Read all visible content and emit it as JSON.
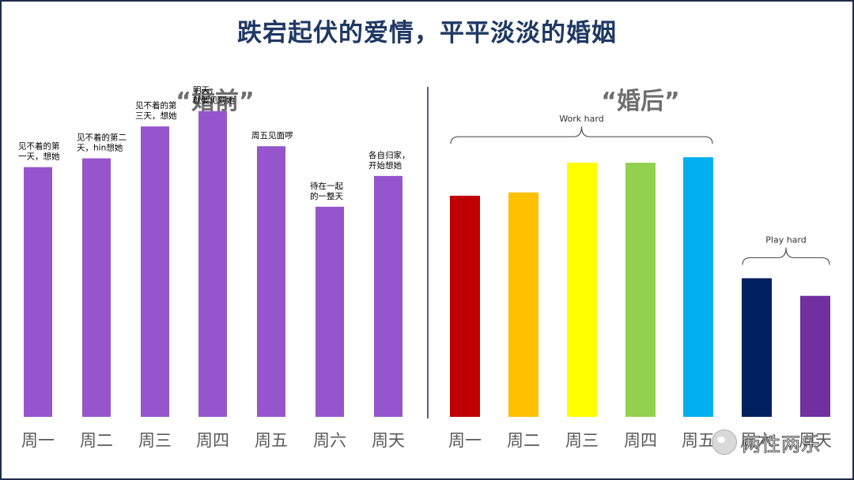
{
  "title": "跌宕起伏的爱情，平平淡淡的婚姻",
  "watermark": "两性两乐",
  "colors": {
    "frame": "#1f2d4d",
    "title": "#1f3864",
    "before_bar": "#9655cc",
    "divider": "#1f2d4d"
  },
  "chart_data": [
    {
      "type": "bar",
      "title": "“婚前”",
      "categories": [
        "周一",
        "周二",
        "周三",
        "周四",
        "周五",
        "周六",
        "周天"
      ],
      "values": [
        227,
        235,
        264,
        278,
        246,
        191,
        219
      ],
      "ylim": [
        0,
        300
      ],
      "annotations": [
        "见不着的第\n一天，想她",
        "见不着的第二\n天，hin想她",
        "见不着的第\n三天，想她",
        "明天，\n就要见到她",
        "周五见面啰",
        "待在一起\n的一整天",
        "各自归家，\n开始想她"
      ]
    },
    {
      "type": "bar",
      "title": "“婚后”",
      "categories": [
        "周一",
        "周二",
        "周三",
        "周四",
        "周五",
        "周六",
        "周天"
      ],
      "values": [
        201,
        204,
        231,
        231,
        236,
        126,
        110
      ],
      "ylim": [
        0,
        300
      ],
      "colors": [
        "#c00000",
        "#ffc000",
        "#ffff00",
        "#92d050",
        "#00b0f0",
        "#002060",
        "#7030a0"
      ],
      "annotations": [
        {
          "text": "Work hard",
          "from": 0,
          "to": 4
        },
        {
          "text": "Play hard",
          "from": 5,
          "to": 6
        }
      ]
    }
  ]
}
